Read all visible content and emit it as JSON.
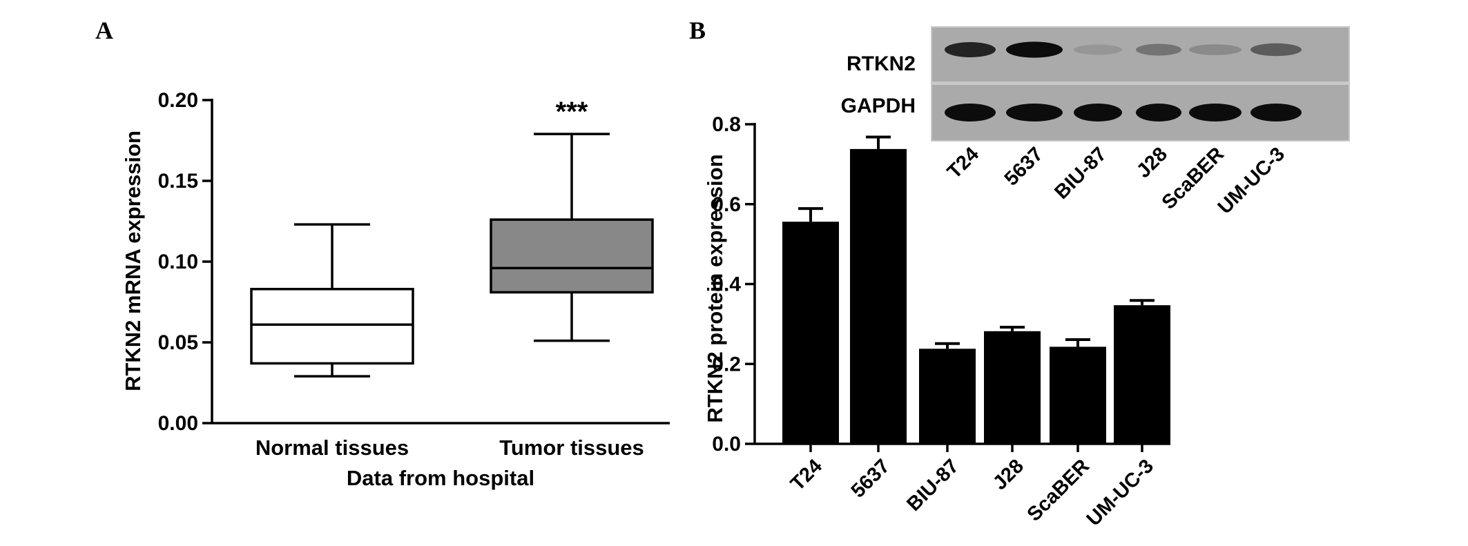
{
  "chart_data": [
    {
      "panel": "A",
      "type": "box",
      "ylabel": "RTKN2 mRNA expression",
      "xlabel": "Data from hospital",
      "ylim": [
        0,
        0.2
      ],
      "yticks": [
        "0.00",
        "0.05",
        "0.10",
        "0.15",
        "0.20"
      ],
      "grid": false,
      "categories": [
        "Normal tissues",
        "Tumor tissues"
      ],
      "boxes": [
        {
          "min": 0.029,
          "q1": 0.037,
          "median": 0.061,
          "q3": 0.083,
          "max": 0.123,
          "fill": "#ffffff"
        },
        {
          "min": 0.051,
          "q1": 0.081,
          "median": 0.096,
          "q3": 0.126,
          "max": 0.179,
          "fill": "#888888"
        }
      ],
      "annotations": [
        {
          "category": "Tumor tissues",
          "text": "***"
        }
      ]
    },
    {
      "panel": "B",
      "type": "bar",
      "ylabel": "RTKN2 protein expression",
      "ylim": [
        0,
        0.8
      ],
      "yticks": [
        "0.0",
        "0.2",
        "0.4",
        "0.6",
        "0.8"
      ],
      "grid": false,
      "categories": [
        "T24",
        "5637",
        "BIU-87",
        "J28",
        "ScaBER",
        "UM-UC-3"
      ],
      "values": [
        0.556,
        0.738,
        0.238,
        0.282,
        0.243,
        0.347
      ],
      "errors": [
        0.033,
        0.03,
        0.013,
        0.01,
        0.018,
        0.012
      ],
      "bar_color": "#000000",
      "blot": {
        "rows": [
          "RTKN2",
          "GAPDH"
        ],
        "lanes": [
          "T24",
          "5637",
          "BIU-87",
          "J28",
          "ScaBER",
          "UM-UC-3"
        ],
        "band_intensity": {
          "RTKN2": [
            0.85,
            0.95,
            0.35,
            0.5,
            0.4,
            0.6
          ],
          "GAPDH": [
            0.95,
            0.95,
            0.95,
            0.95,
            0.95,
            0.95
          ]
        }
      }
    }
  ]
}
